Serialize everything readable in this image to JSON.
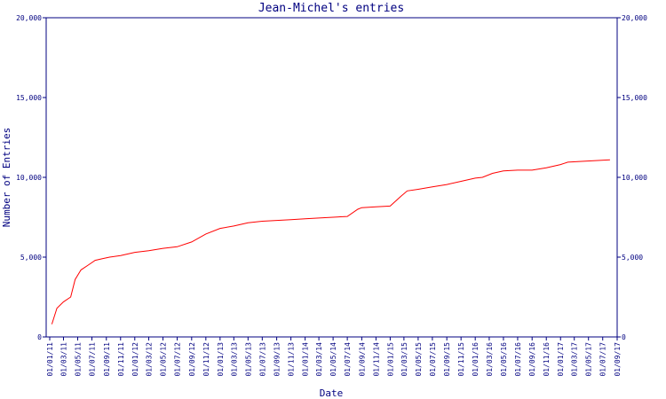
{
  "chart_data": {
    "type": "line",
    "title": "Jean-Michel's entries",
    "xlabel": "Date",
    "ylabel": "Number of Entries",
    "ylim": [
      0,
      20000
    ],
    "y_ticks": [
      0,
      5000,
      10000,
      15000,
      20000
    ],
    "y_tick_labels": [
      "0",
      "5,000",
      "10,000",
      "15,000",
      "20,000"
    ],
    "right_y_axis": true,
    "grid": false,
    "legend": "none",
    "x_tick_labels": [
      "01/01/11",
      "01/03/11",
      "01/05/11",
      "01/07/11",
      "01/09/11",
      "01/11/11",
      "01/01/12",
      "01/03/12",
      "01/05/12",
      "01/07/12",
      "01/09/12",
      "01/11/12",
      "01/01/13",
      "01/03/13",
      "01/05/13",
      "01/07/13",
      "01/09/13",
      "01/11/13",
      "01/01/14",
      "01/03/14",
      "01/05/14",
      "01/07/14",
      "01/09/14",
      "01/11/14",
      "01/01/15",
      "01/03/15",
      "01/05/15",
      "01/07/15",
      "01/09/15",
      "01/11/15",
      "01/01/16",
      "01/03/16",
      "01/05/16",
      "01/07/16",
      "01/09/16",
      "01/11/16",
      "01/01/17",
      "01/03/17",
      "01/05/17",
      "01/07/17",
      "01/09/17"
    ],
    "series": [
      {
        "color": "#ff0000",
        "x": [
          "2011-01-10",
          "2011-02-01",
          "2011-03-01",
          "2011-04-01",
          "2011-04-20",
          "2011-05-15",
          "2011-06-15",
          "2011-07-15",
          "2011-08-15",
          "2011-09-15",
          "2011-11-01",
          "2012-01-01",
          "2012-03-01",
          "2012-05-01",
          "2012-07-01",
          "2012-09-01",
          "2012-11-01",
          "2013-01-01",
          "2013-03-01",
          "2013-05-01",
          "2013-07-01",
          "2013-09-01",
          "2013-11-01",
          "2014-01-01",
          "2014-03-01",
          "2014-05-01",
          "2014-07-01",
          "2014-08-15",
          "2014-09-01",
          "2014-11-01",
          "2015-01-01",
          "2015-02-15",
          "2015-03-15",
          "2015-05-01",
          "2015-07-01",
          "2015-09-01",
          "2015-11-01",
          "2016-01-01",
          "2016-02-01",
          "2016-03-15",
          "2016-05-01",
          "2016-07-01",
          "2016-09-01",
          "2016-11-01",
          "2017-01-01",
          "2017-02-01",
          "2017-04-01",
          "2017-06-01",
          "2017-08-01"
        ],
        "y": [
          800,
          1800,
          2200,
          2500,
          3600,
          4200,
          4500,
          4800,
          4900,
          5000,
          5100,
          5300,
          5400,
          5550,
          5650,
          5950,
          6450,
          6800,
          6950,
          7150,
          7250,
          7300,
          7350,
          7400,
          7450,
          7500,
          7550,
          8000,
          8100,
          8150,
          8200,
          8800,
          9150,
          9250,
          9400,
          9550,
          9750,
          9950,
          10000,
          10250,
          10400,
          10450,
          10450,
          10600,
          10800,
          10950,
          11000,
          11050,
          11100
        ]
      }
    ]
  }
}
